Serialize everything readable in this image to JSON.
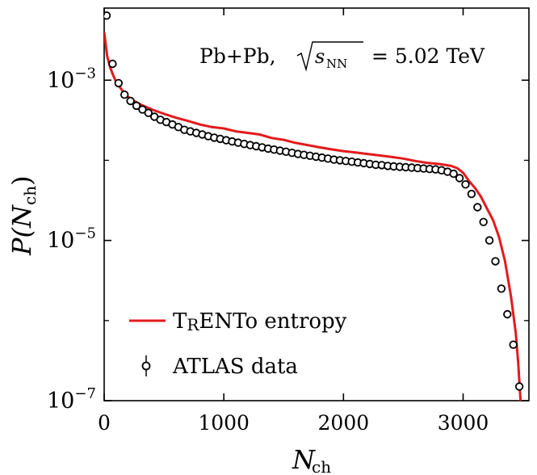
{
  "chart_data": {
    "type": "line",
    "annotation": {
      "prefix": "Pb+Pb,",
      "sqrt_symbol": "√",
      "s_var": "s",
      "s_sub": "NN",
      "suffix": "= 5.02 TeV"
    },
    "xlabel": {
      "main": "N",
      "sub": "ch"
    },
    "ylabel": {
      "prefix": "P(",
      "main": "N",
      "sub": "ch",
      "suffix": ")"
    },
    "xlim": [
      0,
      3550
    ],
    "ylim_log10": [
      -7,
      -2.1
    ],
    "yscale": "log",
    "x_ticks": [
      {
        "value": 0,
        "label": "0"
      },
      {
        "value": 1000,
        "label": "1000"
      },
      {
        "value": 2000,
        "label": "2000"
      },
      {
        "value": 3000,
        "label": "3000"
      }
    ],
    "y_ticks": [
      {
        "log10": -3,
        "base": "10",
        "exp": "−3"
      },
      {
        "log10": -5,
        "base": "10",
        "exp": "−5"
      },
      {
        "log10": -7,
        "base": "10",
        "exp": "−7"
      }
    ],
    "legend": [
      {
        "label": "TRENTo entropy",
        "label_T": "T",
        "label_R": "R",
        "label_rest": "ENTo entropy",
        "marker": "line",
        "color": "#e31a1c"
      },
      {
        "label": "ATLAS data",
        "marker": "open-circle-errorbar",
        "color": "#000000"
      }
    ],
    "legend_position": "bottom-left",
    "series": [
      {
        "name": "TRENTo entropy",
        "style": "line",
        "color": "#e31a1c",
        "x": [
          0,
          25,
          50,
          75,
          100,
          150,
          200,
          250,
          300,
          400,
          500,
          600,
          700,
          800,
          900,
          1000,
          1100,
          1200,
          1300,
          1400,
          1500,
          1600,
          1700,
          1800,
          1900,
          2000,
          2100,
          2200,
          2300,
          2400,
          2500,
          2600,
          2700,
          2800,
          2900,
          2950,
          3000,
          3050,
          3100,
          3150,
          3200,
          3250,
          3300,
          3350,
          3400,
          3440,
          3460,
          3480
        ],
        "y": [
          0.004,
          0.002,
          0.00145,
          0.00115,
          0.00095,
          0.00075,
          0.00062,
          0.00055,
          0.0005,
          0.00043,
          0.00038,
          0.00034,
          0.00031,
          0.00028,
          0.00026,
          0.00025,
          0.00023,
          0.00022,
          0.00021,
          0.00019,
          0.00018,
          0.000165,
          0.000155,
          0.000145,
          0.000137,
          0.00013,
          0.000125,
          0.00012,
          0.000115,
          0.00011,
          0.000105,
          9.8e-05,
          9.3e-05,
          9e-05,
          8.5e-05,
          8e-05,
          7e-05,
          5.5e-05,
          4.5e-05,
          3.5e-05,
          2.5e-05,
          1.8e-05,
          1.1e-05,
          5.5e-06,
          2e-06,
          7e-07,
          3e-07,
          1e-07
        ]
      },
      {
        "name": "ATLAS data",
        "style": "open-circle",
        "color": "#000000",
        "x": [
          20,
          70,
          120,
          170,
          220,
          270,
          320,
          370,
          420,
          470,
          520,
          570,
          620,
          670,
          720,
          770,
          820,
          870,
          920,
          970,
          1020,
          1070,
          1120,
          1170,
          1220,
          1270,
          1320,
          1370,
          1420,
          1470,
          1520,
          1570,
          1620,
          1670,
          1720,
          1770,
          1820,
          1870,
          1920,
          1970,
          2020,
          2070,
          2120,
          2170,
          2220,
          2270,
          2320,
          2370,
          2420,
          2470,
          2520,
          2570,
          2620,
          2670,
          2720,
          2770,
          2820,
          2870,
          2920,
          2970,
          3020,
          3070,
          3120,
          3170,
          3220,
          3270,
          3320,
          3370,
          3420,
          3470
        ],
        "y": [
          0.0064,
          0.0016,
          0.00092,
          0.00066,
          0.00055,
          0.00048,
          0.00043,
          0.00039,
          0.00035,
          0.00032,
          0.0003,
          0.00028,
          0.00026,
          0.00024,
          0.00023,
          0.00022,
          0.00021,
          0.0002,
          0.000192,
          0.000185,
          0.000178,
          0.000172,
          0.000166,
          0.00016,
          0.000155,
          0.00015,
          0.000145,
          0.00014,
          0.000136,
          0.000132,
          0.000128,
          0.000124,
          0.00012,
          0.000117,
          0.000114,
          0.000111,
          0.000108,
          0.000105,
          0.000102,
          0.0001,
          9.8e-05,
          9.6e-05,
          9.4e-05,
          9.2e-05,
          9e-05,
          8.8e-05,
          8.7e-05,
          8.5e-05,
          8.4e-05,
          8.3e-05,
          8.2e-05,
          8.1e-05,
          8e-05,
          7.9e-05,
          7.8e-05,
          7.7e-05,
          7.5e-05,
          7.2e-05,
          6.8e-05,
          6e-05,
          5e-05,
          3.8e-05,
          2.6e-05,
          1.7e-05,
          1e-05,
          5.5e-06,
          2.5e-06,
          1.2e-06,
          5e-07,
          1.5e-07
        ]
      }
    ]
  }
}
